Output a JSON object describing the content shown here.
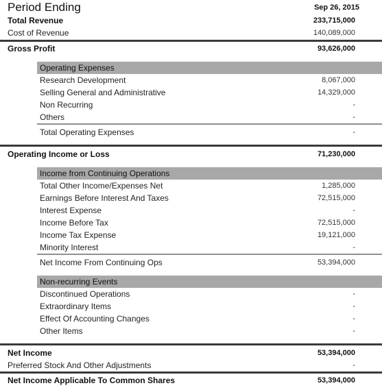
{
  "header": {
    "title": "Period Ending",
    "date": "Sep 26, 2015"
  },
  "rows": {
    "total_revenue": {
      "label": "Total Revenue",
      "value": "233,715,000"
    },
    "cost_of_revenue": {
      "label": "Cost of Revenue",
      "value": "140,089,000"
    },
    "gross_profit": {
      "label": "Gross Profit",
      "value": "93,626,000"
    },
    "operating_expenses": {
      "title": "Operating Expenses",
      "research_development": {
        "label": "Research Development",
        "value": "8,067,000"
      },
      "sga": {
        "label": "Selling General and Administrative",
        "value": "14,329,000"
      },
      "non_recurring": {
        "label": "Non Recurring",
        "value": "-"
      },
      "others": {
        "label": "Others",
        "value": "-"
      },
      "total": {
        "label": "Total Operating Expenses",
        "value": "-"
      }
    },
    "operating_income": {
      "label": "Operating Income or Loss",
      "value": "71,230,000"
    },
    "continuing_ops": {
      "title": "Income from Continuing Operations",
      "total_other_income": {
        "label": "Total Other Income/Expenses Net",
        "value": "1,285,000"
      },
      "ebit": {
        "label": "Earnings Before Interest And Taxes",
        "value": "72,515,000"
      },
      "interest_expense": {
        "label": "Interest Expense",
        "value": "-"
      },
      "income_before_tax": {
        "label": "Income Before Tax",
        "value": "72,515,000"
      },
      "income_tax_expense": {
        "label": "Income Tax Expense",
        "value": "19,121,000"
      },
      "minority_interest": {
        "label": "Minority Interest",
        "value": "-"
      },
      "net_income_continuing": {
        "label": "Net Income From Continuing Ops",
        "value": "53,394,000"
      }
    },
    "non_recurring_events": {
      "title": "Non-recurring Events",
      "discontinued_operations": {
        "label": "Discontinued Operations",
        "value": "-"
      },
      "extraordinary_items": {
        "label": "Extraordinary Items",
        "value": "-"
      },
      "accounting_changes": {
        "label": "Effect Of Accounting Changes",
        "value": "-"
      },
      "other_items": {
        "label": "Other Items",
        "value": "-"
      }
    },
    "net_income": {
      "label": "Net Income",
      "value": "53,394,000"
    },
    "preferred_stock": {
      "label": "Preferred Stock And Other Adjustments",
      "value": "-"
    },
    "net_income_common": {
      "label": "Net Income Applicable To Common Shares",
      "value": "53,394,000"
    }
  }
}
